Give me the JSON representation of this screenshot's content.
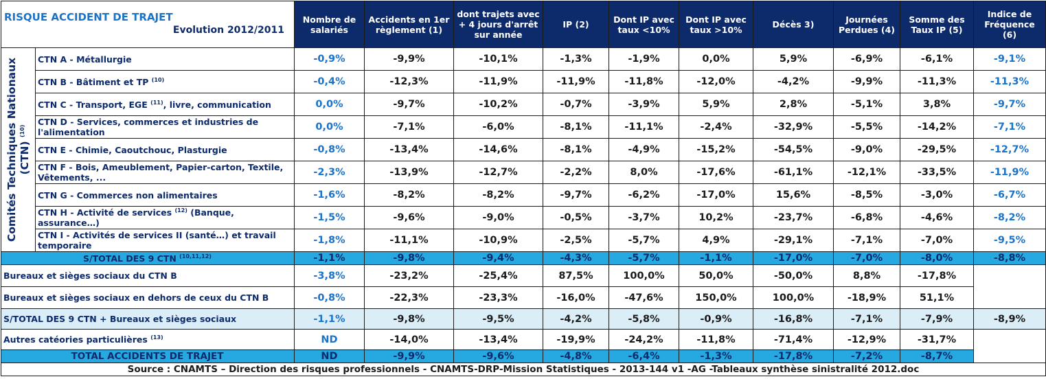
{
  "title": {
    "main": "RISQUE ACCIDENT DE TRAJET",
    "sub": "Evolution 2012/2011"
  },
  "columns": [
    "Nombre de salariés",
    "Accidents en 1er règlement (1)",
    "dont trajets avec + 4 jours d'arrêt sur année",
    "IP (2)",
    "Dont IP avec taux <10%",
    "Dont IP avec taux >10%",
    "Décès 3)",
    "Journées Perdues (4)",
    "Somme des Taux IP (5)",
    "Indice de Fréquence (6)"
  ],
  "side_label": {
    "line1": "Comités Techniques Nationaux",
    "line2": "(CTN)",
    "sup": "(10)"
  },
  "ctn_rows": [
    {
      "label": "CTN A - Métallurgie",
      "sup": "",
      "label_after": "",
      "values": [
        "-0,9%",
        "-9,9%",
        "-10,1%",
        "-1,3%",
        "-1,9%",
        "0,0%",
        "5,9%",
        "-6,9%",
        "-6,1%",
        "-9,1%"
      ]
    },
    {
      "label": "CTN B - Bâtiment et TP",
      "sup": "(10)",
      "label_after": "",
      "values": [
        "-0,4%",
        "-12,3%",
        "-11,9%",
        "-11,9%",
        "-11,8%",
        "-12,0%",
        "-4,2%",
        "-9,9%",
        "-11,3%",
        "-11,3%"
      ]
    },
    {
      "label": "CTN C - Transport, EGE",
      "sup": "(11)",
      "label_after": ", livre, communication",
      "values": [
        "0,0%",
        "-9,7%",
        "-10,2%",
        "-0,7%",
        "-3,9%",
        "5,9%",
        "2,8%",
        "-5,1%",
        "3,8%",
        "-9,7%"
      ]
    },
    {
      "label": "CTN D - Services, commerces et industries de l'alimentation",
      "sup": "",
      "label_after": "",
      "values": [
        "0,0%",
        "-7,1%",
        "-6,0%",
        "-8,1%",
        "-11,1%",
        "-2,4%",
        "-32,9%",
        "-5,5%",
        "-14,2%",
        "-7,1%"
      ]
    },
    {
      "label": "CTN E - Chimie, Caoutchouc, Plasturgie",
      "sup": "",
      "label_after": "",
      "values": [
        "-0,8%",
        "-13,4%",
        "-14,6%",
        "-8,1%",
        "-4,9%",
        "-15,2%",
        "-54,5%",
        "-9,0%",
        "-29,5%",
        "-12,7%"
      ]
    },
    {
      "label": "CTN F - Bois, Ameublement, Papier-carton, Textile, Vêtements, ...",
      "sup": "",
      "label_after": "",
      "values": [
        "-2,3%",
        "-13,9%",
        "-12,7%",
        "-2,2%",
        "8,0%",
        "-17,6%",
        "-61,1%",
        "-12,1%",
        "-33,5%",
        "-11,9%"
      ]
    },
    {
      "label": "CTN G - Commerces non alimentaires",
      "sup": "",
      "label_after": "",
      "values": [
        "-1,6%",
        "-8,2%",
        "-8,2%",
        "-9,7%",
        "-6,2%",
        "-17,0%",
        "15,6%",
        "-8,5%",
        "-3,0%",
        "-6,7%"
      ]
    },
    {
      "label": "CTN H - Activité de services",
      "sup": "(12)",
      "label_after": " (Banque, assurance…)",
      "values": [
        "-1,5%",
        "-9,6%",
        "-9,0%",
        "-0,5%",
        "-3,7%",
        "10,2%",
        "-23,7%",
        "-6,8%",
        "-4,6%",
        "-8,2%"
      ]
    },
    {
      "label": "CTN I - Activités de services II (santé…) et travail temporaire",
      "sup": "",
      "label_after": "",
      "values": [
        "-1,8%",
        "-11,1%",
        "-10,9%",
        "-2,5%",
        "-5,7%",
        "4,9%",
        "-29,1%",
        "-7,1%",
        "-7,0%",
        "-9,5%"
      ]
    }
  ],
  "subtotal_ctn": {
    "label": "S/TOTAL DES 9 CTN",
    "sup": "(10,11,12)",
    "values": [
      "-1,1%",
      "-9,8%",
      "-9,4%",
      "-4,3%",
      "-5,7%",
      "-1,1%",
      "-17,0%",
      "-7,0%",
      "-8,0%",
      "-8,8%"
    ]
  },
  "bureaux_rows": [
    {
      "label": "Bureaux et sièges sociaux du CTN B",
      "values": [
        "-3,8%",
        "-23,2%",
        "-25,4%",
        "87,5%",
        "100,0%",
        "50,0%",
        "-50,0%",
        "8,8%",
        "-17,8%"
      ]
    },
    {
      "label": "Bureaux et sièges sociaux en dehors de ceux du CTN B",
      "values": [
        "-0,8%",
        "-22,3%",
        "-23,3%",
        "-16,0%",
        "-47,6%",
        "150,0%",
        "100,0%",
        "-18,9%",
        "51,1%"
      ]
    }
  ],
  "subtotal_bureaux": {
    "label": "S/TOTAL DES 9 CTN + Bureaux et sièges sociaux",
    "values": [
      "-1,1%",
      "-9,8%",
      "-9,5%",
      "-4,2%",
      "-5,8%",
      "-0,9%",
      "-16,8%",
      "-7,1%",
      "-7,9%",
      "-8,9%"
    ]
  },
  "autres": {
    "label": "Autres catéories particulières",
    "sup": "(13)",
    "values": [
      "ND",
      "-14,0%",
      "-13,4%",
      "-19,9%",
      "-24,2%",
      "-11,8%",
      "-71,4%",
      "-12,9%",
      "-31,7%"
    ]
  },
  "total": {
    "label": "TOTAL ACCIDENTS DE TRAJET",
    "values": [
      "ND",
      "-9,9%",
      "-9,6%",
      "-4,8%",
      "-6,4%",
      "-1,3%",
      "-17,8%",
      "-7,2%",
      "-8,7%"
    ]
  },
  "source": "Source : CNAMTS – Direction des risques professionnels - CNAMTS-DRP-Mission Statistiques - 2013-144 v1 -AG -Tableaux synthèse sinistralité 2012.doc",
  "colors": {
    "header_bg": "#0d2a6b",
    "accent_blue": "#1a73c9",
    "subtotal_bg": "#25a9e0",
    "light_row_bg": "#dbeef7"
  }
}
